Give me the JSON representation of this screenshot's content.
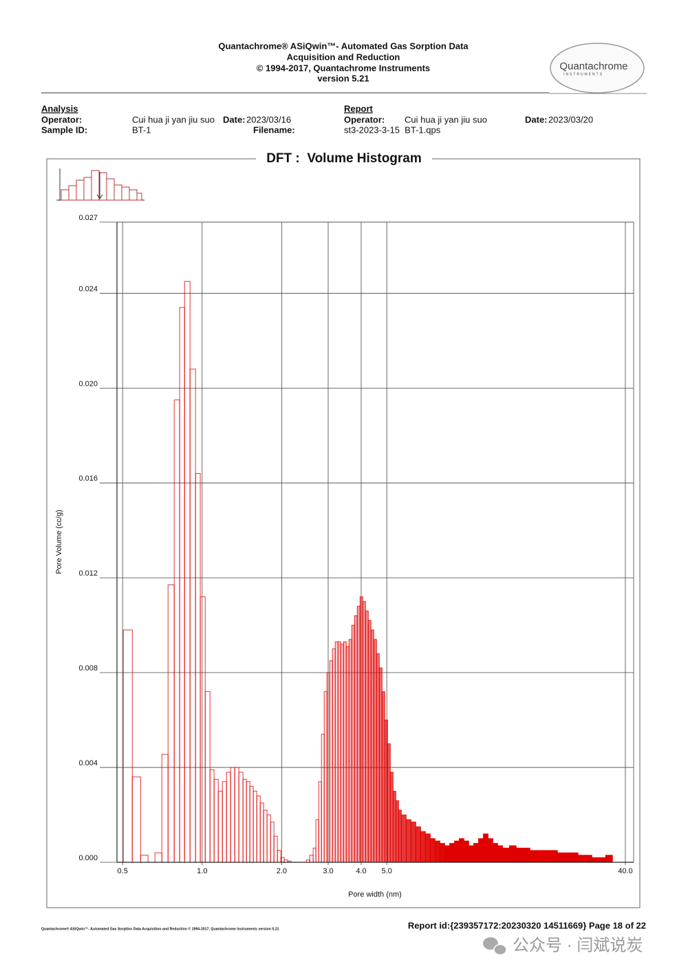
{
  "header": {
    "lines": [
      "Quantachrome® ASiQwin™- Automated Gas Sorption Data",
      "Acquisition and Reduction",
      "© 1994-2017, Quantachrome Instruments",
      "version 5.21"
    ],
    "logo": {
      "name": "Quantachrome",
      "sub": "INSTRUMENTS"
    }
  },
  "analysis": {
    "heading": "Analysis",
    "operator_label": "Operator:",
    "operator": "Cui hua ji yan jiu suo",
    "date_label": "Date:",
    "date": "2023/03/16",
    "sample_label": "Sample ID:",
    "sample": "BT-1",
    "filename_label": "Filename:"
  },
  "report": {
    "heading": "Report",
    "operator_label": "Operator:",
    "operator": "Cui hua ji yan jiu suo",
    "date_label": "Date:",
    "date": "2023/03/20",
    "filename": "st3-2023-3-15  BT-1.qps"
  },
  "chart_data": {
    "type": "histogram",
    "title": "DFT :  Volume Histogram",
    "x_label": "Pore width (nm)",
    "y_label": "Pore Volume (cc/g)",
    "xscale": "log",
    "xlim": [
      0.476,
      43
    ],
    "ylim": [
      0,
      0.027
    ],
    "xticks": [
      0.5,
      {
        "value": 1,
        "label": "1.0"
      },
      {
        "value": 2,
        "label": "2.0"
      },
      {
        "value": 3,
        "label": "3.0"
      },
      {
        "value": 4,
        "label": "4.0"
      },
      {
        "value": 5,
        "label": "5.0"
      },
      {
        "value": 40,
        "label": "40.0"
      }
    ],
    "yticks": [
      {
        "value": 0,
        "label": "0.000"
      },
      0.004,
      0.008,
      0.012,
      0.016,
      {
        "value": 0.02,
        "label": "0.020"
      },
      0.024,
      0.027
    ],
    "grid": true,
    "color": "#e00000",
    "bins": [
      0.503,
      0.544,
      0.585,
      0.624,
      0.663,
      0.704,
      0.743,
      0.784,
      0.822,
      0.858,
      0.9,
      0.944,
      0.984,
      1.027,
      1.071,
      1.11,
      1.151,
      1.193,
      1.237,
      1.282,
      1.329,
      1.377,
      1.428,
      1.471,
      1.516,
      1.562,
      1.61,
      1.659,
      1.709,
      1.761,
      1.815,
      1.87,
      1.927,
      1.985,
      2.046,
      2.108,
      2.172,
      2.48,
      2.555,
      2.632,
      2.696,
      2.762,
      2.829,
      2.898,
      2.968,
      3.04,
      3.114,
      3.19,
      3.268,
      3.347,
      3.428,
      3.512,
      3.597,
      3.684,
      3.774,
      3.866,
      3.96,
      4.056,
      4.155,
      4.256,
      4.359,
      4.465,
      4.574,
      4.685,
      4.799,
      4.915,
      5.035,
      5.157,
      5.283,
      5.411,
      5.543,
      5.677,
      5.921,
      6.175,
      6.44,
      6.716,
      7.004,
      7.305,
      7.618,
      7.945,
      8.286,
      8.641,
      9.012,
      9.398,
      9.801,
      10.22,
      10.66,
      11.12,
      11.6,
      12.09,
      12.61,
      13.15,
      13.72,
      14.55,
      15.45,
      16.4,
      17.42,
      18.49,
      19.64,
      20.85,
      22.14,
      23.51,
      24.96,
      26.5,
      28.14,
      29.88,
      31.73,
      33.69,
      35.77
    ],
    "values": [
      0.0098,
      0.0036,
      0.0003,
      0,
      0.0004,
      0.00455,
      0.0117,
      0.0195,
      0.0234,
      0.0245,
      0.0208,
      0.0164,
      0.0112,
      0.0072,
      0.0039,
      0.0035,
      0.003,
      0.0034,
      0.0038,
      0.004,
      0.004,
      0.0038,
      0.0035,
      0.0034,
      0.0032,
      0.003,
      0.0028,
      0.0025,
      0.0022,
      0.002,
      0.0017,
      0.0011,
      0.0005,
      0.0002,
      0.0001,
      5e-05,
      0,
      0.0001,
      0.0003,
      0.0006,
      0.0018,
      0.0034,
      0.0054,
      0.0072,
      0.008,
      0.0085,
      0.009,
      0.0093,
      0.0093,
      0.0092,
      0.0093,
      0.0091,
      0.0094,
      0.01,
      0.0104,
      0.0108,
      0.0112,
      0.011,
      0.0106,
      0.0102,
      0.0098,
      0.0094,
      0.0088,
      0.0082,
      0.0072,
      0.006,
      0.005,
      0.0038,
      0.003,
      0.0026,
      0.0022,
      0.002,
      0.0018,
      0.0017,
      0.0015,
      0.0013,
      0.0012,
      0.001,
      0.0009,
      0.0008,
      0.0007,
      0.0008,
      0.0009,
      0.001,
      0.0009,
      0.0007,
      0.0008,
      0.001,
      0.0012,
      0.001,
      0.0008,
      0.0007,
      0.0006,
      0.0007,
      0.0006,
      0.0006,
      0.0005,
      0.0005,
      0.0005,
      0.0005,
      0.0004,
      0.0004,
      0.0004,
      0.0003,
      0.0003,
      0.0002,
      0.0002,
      0.0003
    ]
  },
  "footer": {
    "left": "Quantachrome® ASiQwin™- Automated Gas Sorption Data Acquisition and Reduction © 1994-2017, Quantachrome Instruments version 5.21",
    "report_id": "Report id:{239357172:20230320 14511669} Page 18 of 22"
  },
  "watermark": "公众号 · 闫斌说炭"
}
